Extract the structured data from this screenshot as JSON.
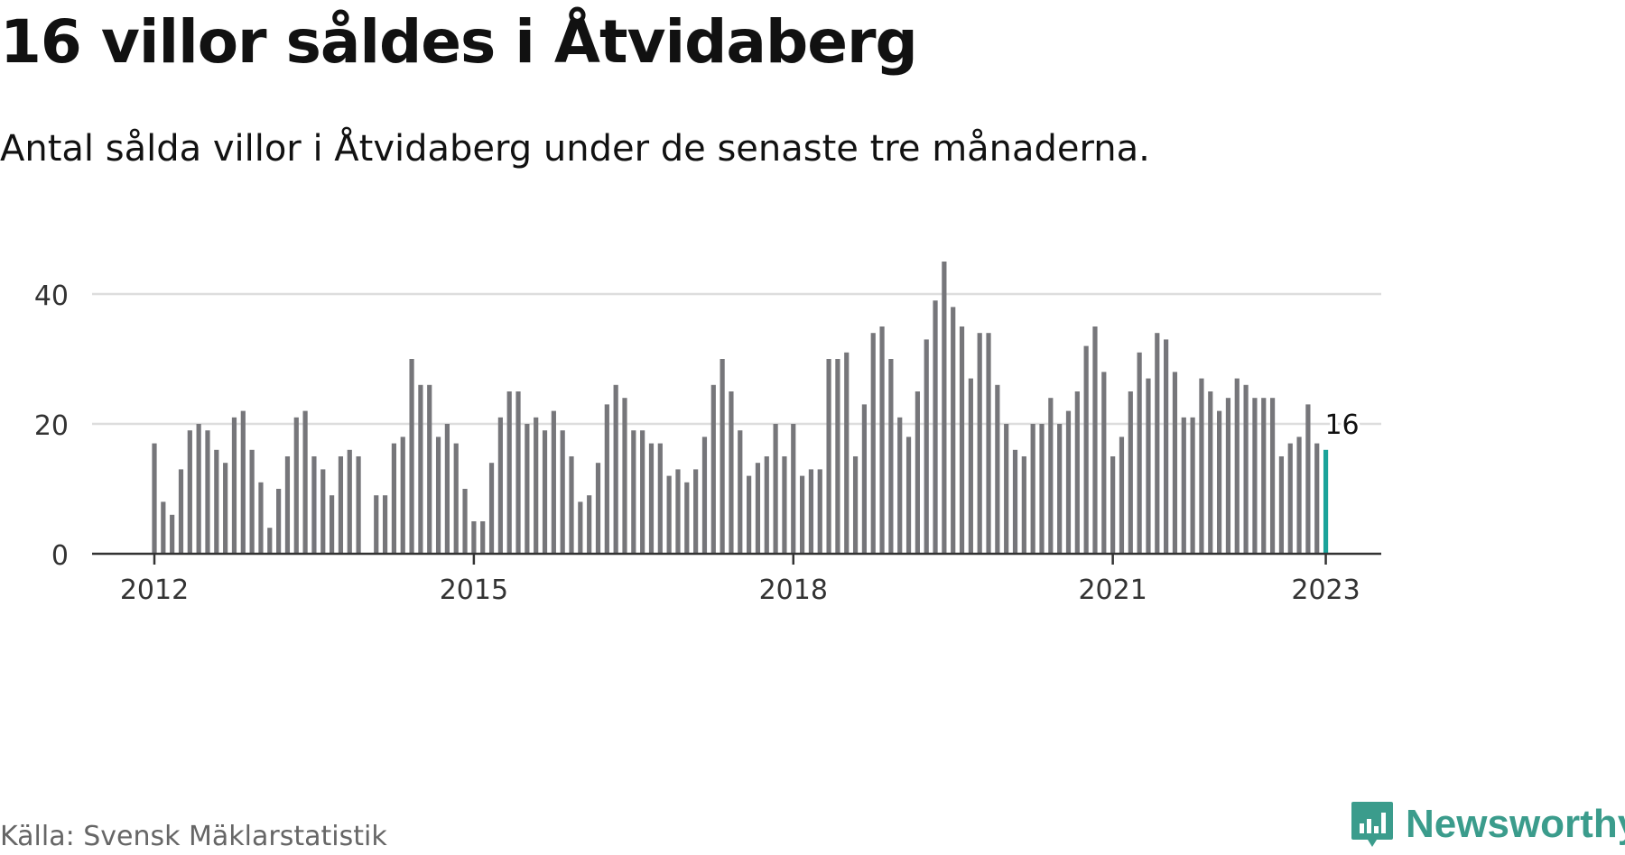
{
  "title": "16 villor såldes i Åtvidaberg",
  "subtitle": "Antal sålda villor i Åtvidaberg under de senaste tre månaderna.",
  "source": "Källa: Svensk Mäklarstatistik",
  "brand": {
    "name": "Newsworthy",
    "icon": "newsworthy-logo-icon",
    "color": "#3b9c8c"
  },
  "colors": {
    "bar": "#76767a",
    "highlight": "#1aa39a",
    "grid": "#dddddd",
    "axis": "#333333",
    "tick_text": "#333333"
  },
  "chart_data": {
    "type": "bar",
    "title": "16 villor såldes i Åtvidaberg",
    "subtitle": "Antal sålda villor i Åtvidaberg under de senaste tre månaderna.",
    "xlabel": "",
    "ylabel": "",
    "x_start": "2012-01",
    "x_ticks": [
      "2012",
      "2015",
      "2018",
      "2021",
      "2023"
    ],
    "y_ticks": [
      0,
      20,
      40
    ],
    "ylim": [
      0,
      50
    ],
    "grid": true,
    "highlight_last": true,
    "last_value_label": "16",
    "values": [
      17,
      8,
      6,
      13,
      19,
      20,
      19,
      16,
      14,
      21,
      22,
      16,
      11,
      4,
      10,
      15,
      21,
      22,
      15,
      13,
      9,
      15,
      16,
      15,
      null,
      9,
      9,
      17,
      18,
      30,
      26,
      26,
      18,
      20,
      17,
      10,
      5,
      5,
      14,
      21,
      25,
      25,
      20,
      21,
      19,
      22,
      19,
      15,
      8,
      9,
      14,
      23,
      26,
      24,
      19,
      19,
      17,
      17,
      12,
      13,
      11,
      13,
      18,
      26,
      30,
      25,
      19,
      12,
      14,
      15,
      20,
      15,
      20,
      12,
      13,
      13,
      30,
      30,
      31,
      15,
      23,
      34,
      35,
      30,
      21,
      18,
      25,
      33,
      39,
      47,
      38,
      35,
      27,
      34,
      34,
      26,
      20,
      16,
      15,
      20,
      20,
      24,
      20,
      22,
      25,
      32,
      35,
      28,
      15,
      18,
      25,
      31,
      27,
      34,
      33,
      28,
      21,
      21,
      27,
      25,
      22,
      24,
      27,
      26,
      24,
      24,
      24,
      15,
      17,
      18,
      23,
      17,
      16
    ]
  }
}
